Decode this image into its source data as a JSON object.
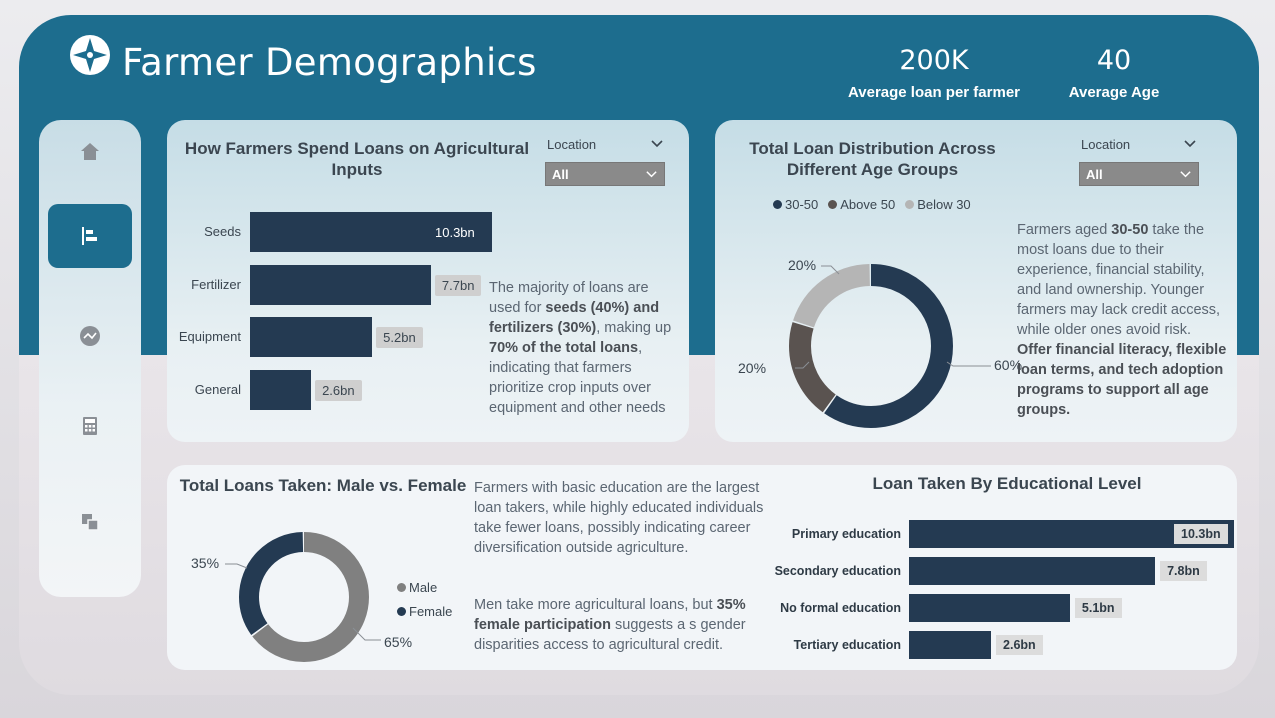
{
  "header": {
    "title": "Farmer Demographics",
    "kpis": [
      {
        "value": "200K",
        "label": "Average loan per farmer"
      },
      {
        "value": "40",
        "label": "Average Age"
      }
    ]
  },
  "sidebar": {
    "items": [
      {
        "icon": "home-icon",
        "active": false
      },
      {
        "icon": "bar-chart-icon",
        "active": true
      },
      {
        "icon": "network-icon",
        "active": false
      },
      {
        "icon": "calculator-icon",
        "active": false
      },
      {
        "icon": "layers-icon",
        "active": false
      }
    ]
  },
  "inputs_card": {
    "title": "How Farmers Spend Loans on Agricultural Inputs",
    "filter_label": "Location",
    "filter_value": "All",
    "chart_data": {
      "type": "bar",
      "orientation": "horizontal",
      "categories": [
        "Seeds",
        "Fertilizer",
        "Equipment",
        "General"
      ],
      "values": [
        10.3,
        7.7,
        5.2,
        2.6
      ],
      "value_labels": [
        "10.3bn",
        "7.7bn",
        "5.2bn",
        "2.6bn"
      ],
      "unit": "bn"
    },
    "insight": {
      "p1": "The majority of loans are used for ",
      "b1": "seeds (40%) and fertilizers (30%)",
      "p2": ", making up ",
      "b2": "70% of the total loans",
      "p3": ", indicating that farmers prioritize crop inputs over equipment and other needs"
    }
  },
  "age_card": {
    "title": "Total Loan Distribution Across Different Age Groups",
    "filter_label": "Location",
    "filter_value": "All",
    "legend": [
      "30-50",
      "Above 50",
      "Below 30"
    ],
    "chart_data": {
      "type": "pie",
      "style": "donut",
      "categories": [
        "30-50",
        "Above 50",
        "Below 30"
      ],
      "values": [
        60,
        20,
        20
      ],
      "value_labels": [
        "60%",
        "20%",
        "20%"
      ],
      "colors": [
        "#243a52",
        "#5a5350",
        "#b5b5b5"
      ]
    },
    "insight": {
      "p1": "Farmers aged ",
      "b1": "30-50",
      "p2": " take the most loans due to their experience, financial stability, and land ownership. Younger farmers may lack credit access, while older ones avoid risk. ",
      "b2": "Offer financial literacy, flexible loan terms, and tech adoption programs to support all age groups."
    }
  },
  "gender_card": {
    "title": "Total Loans Taken: Male vs. Female",
    "chart_data": {
      "type": "pie",
      "style": "donut",
      "categories": [
        "Male",
        "Female"
      ],
      "values": [
        65,
        35
      ],
      "value_labels": [
        "65%",
        "35%"
      ],
      "colors": [
        "#808080",
        "#243a52"
      ]
    },
    "legend": [
      "Male",
      "Female"
    ],
    "insight1": "Farmers with basic education are the largest loan takers, while highly educated individuals take fewer loans, possibly indicating career diversification outside agriculture.",
    "insight2": {
      "p1": "Men take more agricultural loans, but ",
      "b1": "35% female participation",
      "p2": " suggests a s gender disparities access to agricultural credit."
    }
  },
  "edu_card": {
    "title": "Loan Taken By Educational Level",
    "chart_data": {
      "type": "bar",
      "orientation": "horizontal",
      "categories": [
        "Primary education",
        "Secondary education",
        "No formal education",
        "Tertiary education"
      ],
      "values": [
        10.3,
        7.8,
        5.1,
        2.6
      ],
      "value_labels": [
        "10.3bn",
        "7.8bn",
        "5.1bn",
        "2.6bn"
      ],
      "unit": "bn"
    }
  }
}
